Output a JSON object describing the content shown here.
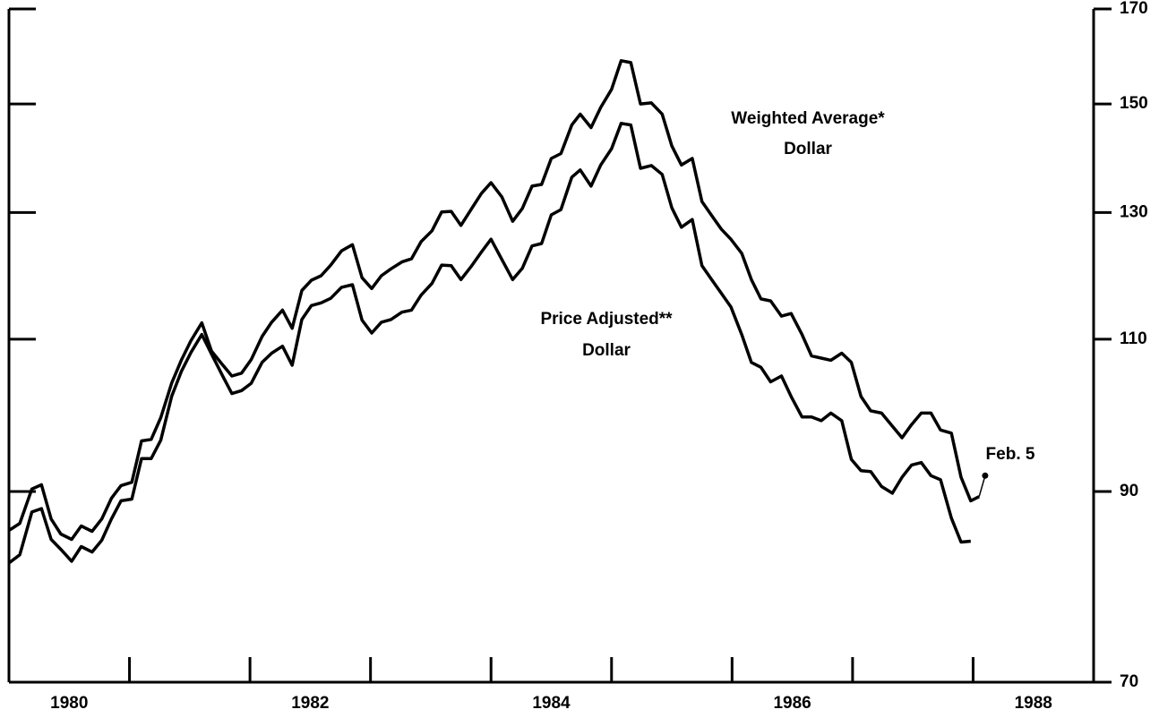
{
  "chart_data": {
    "type": "line",
    "x": [
      1980.0,
      1980.09,
      1980.19,
      1980.27,
      1980.35,
      1980.43,
      1980.52,
      1980.6,
      1980.69,
      1980.77,
      1980.85,
      1980.93,
      1981.02,
      1981.1,
      1981.18,
      1981.26,
      1981.35,
      1981.43,
      1981.51,
      1981.6,
      1981.68,
      1981.77,
      1981.85,
      1981.93,
      1982.01,
      1982.1,
      1982.18,
      1982.27,
      1982.35,
      1982.43,
      1982.51,
      1982.59,
      1982.67,
      1982.76,
      1982.85,
      1982.93,
      1983.01,
      1983.09,
      1983.17,
      1983.26,
      1983.34,
      1983.42,
      1983.51,
      1983.59,
      1983.67,
      1983.75,
      1983.84,
      1983.92,
      1984.0,
      1984.09,
      1984.18,
      1984.26,
      1984.34,
      1984.42,
      1984.5,
      1984.58,
      1984.67,
      1984.74,
      1984.83,
      1984.91,
      1985.0,
      1985.08,
      1985.16,
      1985.24,
      1985.33,
      1985.42,
      1985.5,
      1985.58,
      1985.67,
      1985.75,
      1985.83,
      1985.91,
      1985.99,
      1986.08,
      1986.16,
      1986.24,
      1986.32,
      1986.41,
      1986.49,
      1986.58,
      1986.66,
      1986.74,
      1986.82,
      1986.91,
      1986.99,
      1987.07,
      1987.15,
      1987.24,
      1987.33,
      1987.41,
      1987.49,
      1987.57,
      1987.65,
      1987.73,
      1987.82,
      1987.9,
      1987.98,
      1988.05
    ],
    "series": [
      {
        "label_lines": [
          "Weighted Average*",
          "Dollar"
        ],
        "color": "#000000",
        "values": [
          85.5,
          86.3,
          90.3,
          90.8,
          86.8,
          85.1,
          84.5,
          86.0,
          85.4,
          86.8,
          89.2,
          90.7,
          91.1,
          96.2,
          96.4,
          99.2,
          103.8,
          107.0,
          109.8,
          112.4,
          108.3,
          106.4,
          104.8,
          105.2,
          107.1,
          110.4,
          112.5,
          114.3,
          111.6,
          117.3,
          118.9,
          119.6,
          121.3,
          123.6,
          124.6,
          119.3,
          117.6,
          119.6,
          120.7,
          121.8,
          122.3,
          125.1,
          126.9,
          130.1,
          130.2,
          127.8,
          130.7,
          133.3,
          135.2,
          132.7,
          128.5,
          130.7,
          134.6,
          134.9,
          139.6,
          140.5,
          145.9,
          148.0,
          145.4,
          149.3,
          152.9,
          158.8,
          158.4,
          150.0,
          150.2,
          148.0,
          141.9,
          138.4,
          139.6,
          131.9,
          129.5,
          127.2,
          125.5,
          123.2,
          119.0,
          116.0,
          115.7,
          113.4,
          113.8,
          110.7,
          107.6,
          107.3,
          107.0,
          108.0,
          106.7,
          102.0,
          100.1,
          99.8,
          98.1,
          96.6,
          98.3,
          99.8,
          99.8,
          97.6,
          97.2,
          91.7,
          88.9,
          89.4
        ]
      },
      {
        "label_lines": [
          "Price Adjusted**",
          "Dollar"
        ],
        "color": "#000000",
        "values": [
          81.9,
          82.8,
          87.6,
          88.0,
          84.5,
          83.4,
          82.1,
          83.7,
          83.1,
          84.4,
          86.8,
          88.9,
          89.1,
          94.0,
          94.0,
          96.3,
          102.0,
          105.4,
          108.1,
          110.7,
          107.9,
          104.9,
          102.4,
          102.8,
          103.8,
          106.7,
          108.0,
          109.0,
          106.3,
          112.9,
          115.0,
          115.4,
          116.1,
          117.8,
          118.2,
          112.8,
          110.9,
          112.5,
          112.9,
          114.0,
          114.3,
          116.6,
          118.4,
          121.3,
          121.2,
          119.0,
          121.2,
          123.4,
          125.5,
          122.2,
          119.0,
          120.8,
          124.4,
          124.8,
          129.6,
          130.5,
          136.2,
          137.5,
          134.6,
          138.4,
          141.4,
          146.2,
          145.9,
          137.8,
          138.3,
          136.7,
          130.8,
          127.5,
          128.8,
          121.2,
          119.0,
          116.9,
          114.8,
          110.7,
          106.7,
          106.0,
          104.0,
          104.8,
          102.0,
          99.3,
          99.3,
          98.8,
          99.8,
          98.8,
          93.9,
          92.5,
          92.4,
          90.6,
          89.8,
          91.7,
          93.2,
          93.5,
          91.9,
          91.4,
          86.9,
          84.2,
          84.3,
          null
        ]
      }
    ],
    "feb_point": {
      "label": "Feb. 5",
      "x": 1988.1,
      "y": 91.9
    },
    "xlim": [
      1980,
      1989
    ],
    "xticks": [
      {
        "value": 1980.5,
        "label": "1980"
      },
      {
        "value": 1982.5,
        "label": "1982"
      },
      {
        "value": 1984.5,
        "label": "1984"
      },
      {
        "value": 1986.5,
        "label": "1986"
      },
      {
        "value": 1988.5,
        "label": "1988"
      }
    ],
    "xtick_marks": [
      1981,
      1982,
      1983,
      1984,
      1985,
      1986,
      1987,
      1988
    ],
    "ylim": [
      70,
      170
    ],
    "yticks": [
      70,
      90,
      110,
      130,
      150,
      170
    ],
    "log_scale": true,
    "grid": false
  }
}
